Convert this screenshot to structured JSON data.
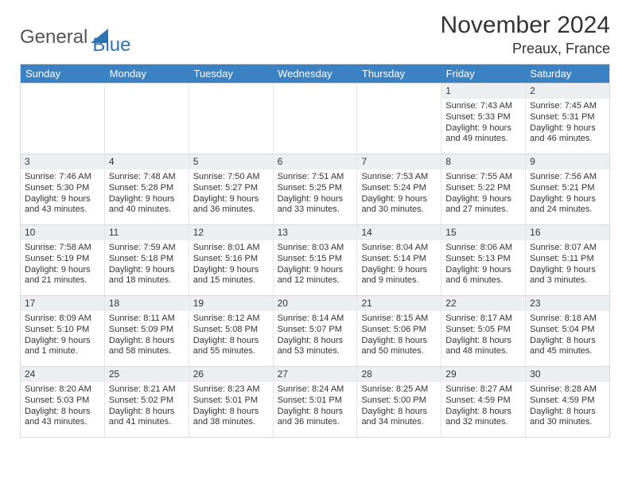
{
  "logo": {
    "word1": "General",
    "word2": "Blue",
    "word1_color": "#555555",
    "word2_color": "#2d74b5"
  },
  "title": {
    "month": "November 2024",
    "location": "Preaux, France"
  },
  "theme": {
    "header_bg": "#3a82c4",
    "header_text": "#ffffff",
    "grid_border": "#d9d9d9",
    "daynum_bg": "#eceff1",
    "body_text": "#333333",
    "cell_fontsize": 11
  },
  "day_headers": [
    "Sunday",
    "Monday",
    "Tuesday",
    "Wednesday",
    "Thursday",
    "Friday",
    "Saturday"
  ],
  "weeks": [
    [
      {
        "empty": true
      },
      {
        "empty": true
      },
      {
        "empty": true
      },
      {
        "empty": true
      },
      {
        "empty": true
      },
      {
        "n": "1",
        "sunrise": "Sunrise: 7:43 AM",
        "sunset": "Sunset: 5:33 PM",
        "day1": "Daylight: 9 hours",
        "day2": "and 49 minutes."
      },
      {
        "n": "2",
        "sunrise": "Sunrise: 7:45 AM",
        "sunset": "Sunset: 5:31 PM",
        "day1": "Daylight: 9 hours",
        "day2": "and 46 minutes."
      }
    ],
    [
      {
        "n": "3",
        "sunrise": "Sunrise: 7:46 AM",
        "sunset": "Sunset: 5:30 PM",
        "day1": "Daylight: 9 hours",
        "day2": "and 43 minutes."
      },
      {
        "n": "4",
        "sunrise": "Sunrise: 7:48 AM",
        "sunset": "Sunset: 5:28 PM",
        "day1": "Daylight: 9 hours",
        "day2": "and 40 minutes."
      },
      {
        "n": "5",
        "sunrise": "Sunrise: 7:50 AM",
        "sunset": "Sunset: 5:27 PM",
        "day1": "Daylight: 9 hours",
        "day2": "and 36 minutes."
      },
      {
        "n": "6",
        "sunrise": "Sunrise: 7:51 AM",
        "sunset": "Sunset: 5:25 PM",
        "day1": "Daylight: 9 hours",
        "day2": "and 33 minutes."
      },
      {
        "n": "7",
        "sunrise": "Sunrise: 7:53 AM",
        "sunset": "Sunset: 5:24 PM",
        "day1": "Daylight: 9 hours",
        "day2": "and 30 minutes."
      },
      {
        "n": "8",
        "sunrise": "Sunrise: 7:55 AM",
        "sunset": "Sunset: 5:22 PM",
        "day1": "Daylight: 9 hours",
        "day2": "and 27 minutes."
      },
      {
        "n": "9",
        "sunrise": "Sunrise: 7:56 AM",
        "sunset": "Sunset: 5:21 PM",
        "day1": "Daylight: 9 hours",
        "day2": "and 24 minutes."
      }
    ],
    [
      {
        "n": "10",
        "sunrise": "Sunrise: 7:58 AM",
        "sunset": "Sunset: 5:19 PM",
        "day1": "Daylight: 9 hours",
        "day2": "and 21 minutes."
      },
      {
        "n": "11",
        "sunrise": "Sunrise: 7:59 AM",
        "sunset": "Sunset: 5:18 PM",
        "day1": "Daylight: 9 hours",
        "day2": "and 18 minutes."
      },
      {
        "n": "12",
        "sunrise": "Sunrise: 8:01 AM",
        "sunset": "Sunset: 5:16 PM",
        "day1": "Daylight: 9 hours",
        "day2": "and 15 minutes."
      },
      {
        "n": "13",
        "sunrise": "Sunrise: 8:03 AM",
        "sunset": "Sunset: 5:15 PM",
        "day1": "Daylight: 9 hours",
        "day2": "and 12 minutes."
      },
      {
        "n": "14",
        "sunrise": "Sunrise: 8:04 AM",
        "sunset": "Sunset: 5:14 PM",
        "day1": "Daylight: 9 hours",
        "day2": "and 9 minutes."
      },
      {
        "n": "15",
        "sunrise": "Sunrise: 8:06 AM",
        "sunset": "Sunset: 5:13 PM",
        "day1": "Daylight: 9 hours",
        "day2": "and 6 minutes."
      },
      {
        "n": "16",
        "sunrise": "Sunrise: 8:07 AM",
        "sunset": "Sunset: 5:11 PM",
        "day1": "Daylight: 9 hours",
        "day2": "and 3 minutes."
      }
    ],
    [
      {
        "n": "17",
        "sunrise": "Sunrise: 8:09 AM",
        "sunset": "Sunset: 5:10 PM",
        "day1": "Daylight: 9 hours",
        "day2": "and 1 minute."
      },
      {
        "n": "18",
        "sunrise": "Sunrise: 8:11 AM",
        "sunset": "Sunset: 5:09 PM",
        "day1": "Daylight: 8 hours",
        "day2": "and 58 minutes."
      },
      {
        "n": "19",
        "sunrise": "Sunrise: 8:12 AM",
        "sunset": "Sunset: 5:08 PM",
        "day1": "Daylight: 8 hours",
        "day2": "and 55 minutes."
      },
      {
        "n": "20",
        "sunrise": "Sunrise: 8:14 AM",
        "sunset": "Sunset: 5:07 PM",
        "day1": "Daylight: 8 hours",
        "day2": "and 53 minutes."
      },
      {
        "n": "21",
        "sunrise": "Sunrise: 8:15 AM",
        "sunset": "Sunset: 5:06 PM",
        "day1": "Daylight: 8 hours",
        "day2": "and 50 minutes."
      },
      {
        "n": "22",
        "sunrise": "Sunrise: 8:17 AM",
        "sunset": "Sunset: 5:05 PM",
        "day1": "Daylight: 8 hours",
        "day2": "and 48 minutes."
      },
      {
        "n": "23",
        "sunrise": "Sunrise: 8:18 AM",
        "sunset": "Sunset: 5:04 PM",
        "day1": "Daylight: 8 hours",
        "day2": "and 45 minutes."
      }
    ],
    [
      {
        "n": "24",
        "sunrise": "Sunrise: 8:20 AM",
        "sunset": "Sunset: 5:03 PM",
        "day1": "Daylight: 8 hours",
        "day2": "and 43 minutes."
      },
      {
        "n": "25",
        "sunrise": "Sunrise: 8:21 AM",
        "sunset": "Sunset: 5:02 PM",
        "day1": "Daylight: 8 hours",
        "day2": "and 41 minutes."
      },
      {
        "n": "26",
        "sunrise": "Sunrise: 8:23 AM",
        "sunset": "Sunset: 5:01 PM",
        "day1": "Daylight: 8 hours",
        "day2": "and 38 minutes."
      },
      {
        "n": "27",
        "sunrise": "Sunrise: 8:24 AM",
        "sunset": "Sunset: 5:01 PM",
        "day1": "Daylight: 8 hours",
        "day2": "and 36 minutes."
      },
      {
        "n": "28",
        "sunrise": "Sunrise: 8:25 AM",
        "sunset": "Sunset: 5:00 PM",
        "day1": "Daylight: 8 hours",
        "day2": "and 34 minutes."
      },
      {
        "n": "29",
        "sunrise": "Sunrise: 8:27 AM",
        "sunset": "Sunset: 4:59 PM",
        "day1": "Daylight: 8 hours",
        "day2": "and 32 minutes."
      },
      {
        "n": "30",
        "sunrise": "Sunrise: 8:28 AM",
        "sunset": "Sunset: 4:59 PM",
        "day1": "Daylight: 8 hours",
        "day2": "and 30 minutes."
      }
    ]
  ]
}
